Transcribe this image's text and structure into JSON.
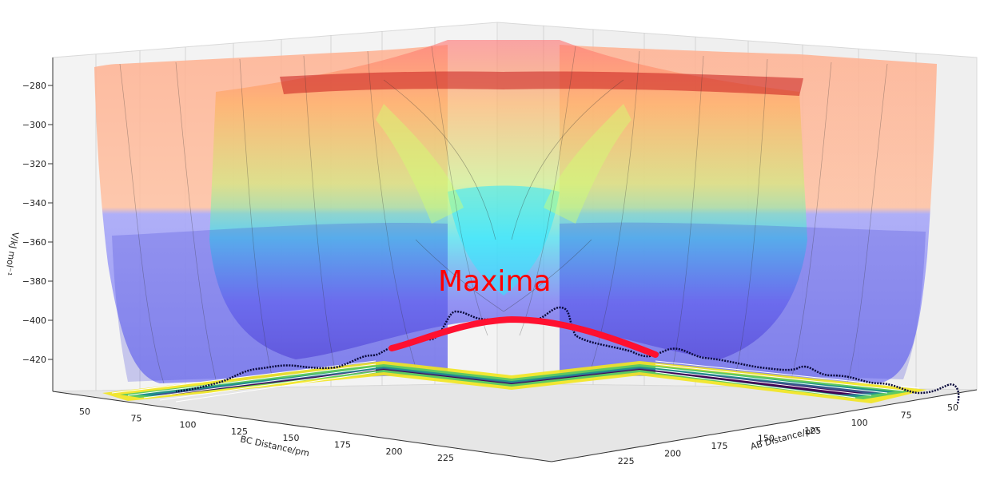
{
  "chart_data": {
    "type": "surface3d",
    "title": "",
    "annotation": "Maxima",
    "zlabel": "V/kJ mol⁻¹",
    "xlabel": "BC Distance/pm",
    "ylabel": "AB Distance/pm",
    "z_ticks": [
      "−280",
      "−300",
      "−320",
      "−340",
      "−360",
      "−380",
      "−400",
      "−420"
    ],
    "bc_ticks": [
      "50",
      "75",
      "100",
      "125",
      "150",
      "175",
      "200",
      "225"
    ],
    "ab_ticks": [
      "50",
      "75",
      "100",
      "125",
      "150",
      "175",
      "200",
      "225"
    ],
    "zlim": [
      -435,
      -270
    ],
    "grid": true,
    "colormap": "jet",
    "contour_colormap": "viridis",
    "colors": {
      "maxima_path": "#ff1030",
      "trajectory": "#0a0a3c",
      "pane": "#f2f2f2",
      "pane_edge": "#d8d8d8"
    }
  }
}
